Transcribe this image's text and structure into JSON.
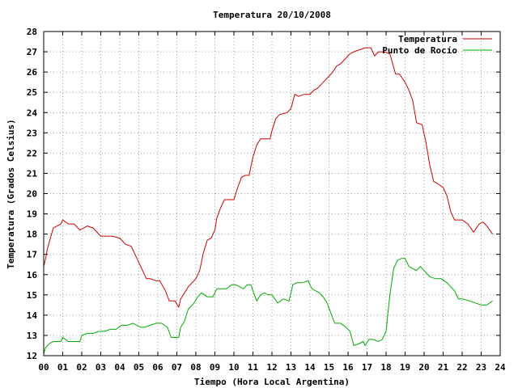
{
  "chart_data": {
    "type": "line",
    "title": "Temperatura 20/10/2008",
    "xlabel": "Tiempo (Hora Local Argentina)",
    "ylabel": "Temperatura (Grados Celsius)",
    "xlim": [
      0,
      24
    ],
    "ylim": [
      12,
      28
    ],
    "x_ticks": [
      "00",
      "01",
      "02",
      "03",
      "04",
      "05",
      "06",
      "07",
      "08",
      "09",
      "10",
      "11",
      "12",
      "13",
      "14",
      "15",
      "16",
      "17",
      "18",
      "19",
      "20",
      "21",
      "22",
      "23",
      "24"
    ],
    "y_ticks": [
      "12",
      "13",
      "14",
      "15",
      "16",
      "17",
      "18",
      "19",
      "20",
      "21",
      "22",
      "23",
      "24",
      "25",
      "26",
      "27",
      "28"
    ],
    "grid": true,
    "legend_position": "top-right",
    "series": [
      {
        "name": "Temperatura",
        "color": "#cc0000",
        "x": [
          0.0,
          0.1,
          0.2,
          0.5,
          0.9,
          1.0,
          1.3,
          1.6,
          1.9,
          2.1,
          2.3,
          2.6,
          3.0,
          3.3,
          3.6,
          4.0,
          4.3,
          4.6,
          4.9,
          5.1,
          5.4,
          5.6,
          5.9,
          6.1,
          6.4,
          6.6,
          6.9,
          7.1,
          7.2,
          7.4,
          7.6,
          7.9,
          8.0,
          8.2,
          8.4,
          8.6,
          8.8,
          9.0,
          9.1,
          9.3,
          9.5,
          9.8,
          10.0,
          10.2,
          10.4,
          10.6,
          10.8,
          11.0,
          11.2,
          11.4,
          11.6,
          11.9,
          12.0,
          12.2,
          12.4,
          12.8,
          13.0,
          13.2,
          13.4,
          13.7,
          14.0,
          14.2,
          14.4,
          14.6,
          14.9,
          15.2,
          15.4,
          15.6,
          15.8,
          16.1,
          16.3,
          16.6,
          16.9,
          17.2,
          17.4,
          17.6,
          17.8,
          17.9,
          18.2,
          18.5,
          18.7,
          19.0,
          19.2,
          19.4,
          19.6,
          19.9,
          20.1,
          20.3,
          20.5,
          20.7,
          21.0,
          21.2,
          21.4,
          21.6,
          21.8,
          22.0,
          22.3,
          22.6,
          22.9,
          23.1,
          23.3,
          23.6
        ],
        "values": [
          16.4,
          16.8,
          17.3,
          18.3,
          18.5,
          18.7,
          18.5,
          18.5,
          18.2,
          18.3,
          18.4,
          18.3,
          17.9,
          17.9,
          17.9,
          17.8,
          17.5,
          17.4,
          16.8,
          16.4,
          15.8,
          15.8,
          15.7,
          15.7,
          15.2,
          14.7,
          14.7,
          14.4,
          14.8,
          15.1,
          15.4,
          15.7,
          15.8,
          16.2,
          17.1,
          17.7,
          17.8,
          18.2,
          18.8,
          19.3,
          19.7,
          19.7,
          19.7,
          20.3,
          20.8,
          20.9,
          20.9,
          21.8,
          22.4,
          22.7,
          22.7,
          22.7,
          23.1,
          23.7,
          23.9,
          24.0,
          24.2,
          24.9,
          24.8,
          24.9,
          24.9,
          25.1,
          25.2,
          25.4,
          25.7,
          26.0,
          26.3,
          26.4,
          26.6,
          26.9,
          27.0,
          27.1,
          27.2,
          27.2,
          26.8,
          27.0,
          27.0,
          27.0,
          26.9,
          25.9,
          25.9,
          25.5,
          25.1,
          24.6,
          23.5,
          23.4,
          22.5,
          21.4,
          20.6,
          20.5,
          20.3,
          19.9,
          19.1,
          18.7,
          18.7,
          18.7,
          18.5,
          18.1,
          18.5,
          18.6,
          18.4,
          18.0
        ]
      },
      {
        "name": "Punto de Rocío",
        "color": "#00aa00",
        "x": [
          0.0,
          0.1,
          0.3,
          0.5,
          0.9,
          1.0,
          1.3,
          1.6,
          1.9,
          2.0,
          2.3,
          2.6,
          2.9,
          3.2,
          3.5,
          3.8,
          4.1,
          4.4,
          4.7,
          5.1,
          5.3,
          5.6,
          5.9,
          6.2,
          6.5,
          6.7,
          6.9,
          7.1,
          7.2,
          7.4,
          7.6,
          7.9,
          8.1,
          8.3,
          8.6,
          8.9,
          9.1,
          9.3,
          9.6,
          9.9,
          10.1,
          10.3,
          10.5,
          10.7,
          10.9,
          11.0,
          11.2,
          11.4,
          11.6,
          11.8,
          12.0,
          12.3,
          12.6,
          12.9,
          13.1,
          13.3,
          13.6,
          13.9,
          14.1,
          14.3,
          14.5,
          14.7,
          14.9,
          15.1,
          15.3,
          15.6,
          15.9,
          16.1,
          16.3,
          16.6,
          16.8,
          16.9,
          17.1,
          17.3,
          17.6,
          17.8,
          18.0,
          18.2,
          18.4,
          18.6,
          18.8,
          19.0,
          19.2,
          19.4,
          19.6,
          19.8,
          20.0,
          20.3,
          20.6,
          20.9,
          21.2,
          21.4,
          21.6,
          21.8,
          22.0,
          22.4,
          22.7,
          23.0,
          23.3,
          23.6
        ],
        "values": [
          12.1,
          12.4,
          12.6,
          12.7,
          12.7,
          12.9,
          12.7,
          12.7,
          12.7,
          13.0,
          13.1,
          13.1,
          13.2,
          13.2,
          13.3,
          13.3,
          13.5,
          13.5,
          13.6,
          13.4,
          13.4,
          13.5,
          13.6,
          13.6,
          13.4,
          12.9,
          12.9,
          12.9,
          13.4,
          13.7,
          14.3,
          14.6,
          14.9,
          15.1,
          14.9,
          14.9,
          15.3,
          15.3,
          15.3,
          15.5,
          15.5,
          15.4,
          15.3,
          15.5,
          15.5,
          15.2,
          14.7,
          15.0,
          15.1,
          15.0,
          15.0,
          14.6,
          14.8,
          14.7,
          15.5,
          15.6,
          15.6,
          15.7,
          15.3,
          15.2,
          15.1,
          14.9,
          14.6,
          14.1,
          13.6,
          13.6,
          13.4,
          13.2,
          12.5,
          12.6,
          12.7,
          12.5,
          12.8,
          12.8,
          12.7,
          12.8,
          13.2,
          15.0,
          16.3,
          16.7,
          16.8,
          16.8,
          16.4,
          16.3,
          16.2,
          16.4,
          16.2,
          15.9,
          15.8,
          15.8,
          15.6,
          15.4,
          15.2,
          14.8,
          14.8,
          14.7,
          14.6,
          14.5,
          14.5,
          14.7
        ]
      }
    ]
  }
}
